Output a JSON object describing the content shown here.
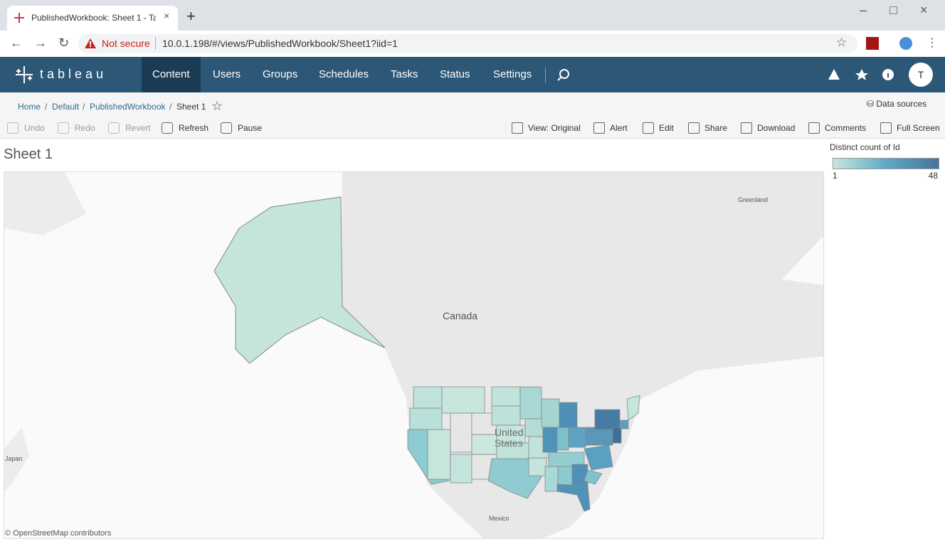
{
  "browser": {
    "tab_title": "PublishedWorkbook: Sheet 1 - Ta",
    "security": "Not secure",
    "url": "10.0.1.198/#/views/PublishedWorkbook/Sheet1?iid=1"
  },
  "nav": {
    "brand": "tableau",
    "items": [
      "Content",
      "Users",
      "Groups",
      "Schedules",
      "Tasks",
      "Status",
      "Settings"
    ],
    "avatar": "T"
  },
  "breadcrumb": [
    "Home",
    "Default",
    "PublishedWorkbook",
    "Sheet 1"
  ],
  "data_sources": "Data sources",
  "toolbar": {
    "left": [
      "Undo",
      "Redo",
      "Revert",
      "Refresh",
      "Pause"
    ],
    "right": [
      "View: Original",
      "Alert",
      "Edit",
      "Share",
      "Download",
      "Comments",
      "Full Screen"
    ]
  },
  "sheet_title": "Sheet 1",
  "map": {
    "labels": [
      "Canada",
      "United",
      "States",
      "Mexico",
      "Greenland",
      "Japan"
    ],
    "attribution": "© OpenStreetMap contributors"
  },
  "legend": {
    "title": "Distinct count of Id",
    "min": 1,
    "max": 48
  }
}
